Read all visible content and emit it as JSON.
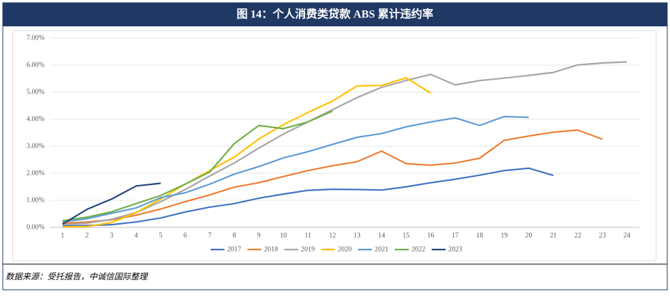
{
  "chart_data": {
    "type": "line",
    "title": "图 14：个人消费类贷款 ABS 累计违约率",
    "categories": [
      "1",
      "2",
      "3",
      "4",
      "5",
      "6",
      "7",
      "8",
      "9",
      "10",
      "11",
      "12",
      "13",
      "14",
      "15",
      "16",
      "17",
      "18",
      "19",
      "20",
      "21",
      "22",
      "23",
      "24"
    ],
    "series": [
      {
        "name": "2017",
        "color": "#4472c4",
        "values": [
          0.05,
          0.07,
          0.1,
          0.2,
          0.35,
          0.57,
          0.75,
          0.88,
          1.08,
          1.23,
          1.37,
          1.41,
          1.4,
          1.38,
          1.5,
          1.65,
          1.78,
          1.93,
          2.1,
          2.19,
          1.92,
          null,
          null,
          null
        ]
      },
      {
        "name": "2018",
        "color": "#ed7d31",
        "values": [
          0.15,
          0.2,
          0.28,
          0.45,
          0.68,
          0.95,
          1.2,
          1.49,
          1.65,
          1.88,
          2.1,
          2.28,
          2.43,
          2.82,
          2.36,
          2.3,
          2.38,
          2.56,
          3.22,
          3.38,
          3.52,
          3.6,
          3.26,
          null
        ]
      },
      {
        "name": "2019",
        "color": "#a5a5a5",
        "values": [
          0.1,
          0.15,
          0.3,
          0.55,
          0.95,
          1.4,
          1.9,
          2.38,
          2.93,
          3.45,
          3.9,
          4.35,
          4.8,
          5.18,
          5.43,
          5.66,
          5.27,
          5.43,
          5.52,
          5.62,
          5.73,
          6.01,
          6.08,
          6.12
        ]
      },
      {
        "name": "2020",
        "color": "#ffc000",
        "values": [
          0.02,
          0.03,
          0.18,
          0.55,
          1.05,
          1.6,
          2.1,
          2.6,
          3.27,
          3.8,
          4.25,
          4.67,
          5.23,
          5.25,
          5.53,
          4.97,
          null,
          null,
          null,
          null,
          null,
          null,
          null,
          null
        ]
      },
      {
        "name": "2021",
        "color": "#5b9bd5",
        "values": [
          0.2,
          0.32,
          0.52,
          0.72,
          1.1,
          1.28,
          1.6,
          1.97,
          2.25,
          2.57,
          2.8,
          3.07,
          3.33,
          3.47,
          3.72,
          3.9,
          4.05,
          3.77,
          4.1,
          4.07,
          null,
          null,
          null,
          null
        ]
      },
      {
        "name": "2022",
        "color": "#70ad47",
        "values": [
          0.25,
          0.38,
          0.58,
          0.88,
          1.18,
          1.6,
          2.05,
          3.1,
          3.77,
          3.65,
          3.9,
          4.3,
          null,
          null,
          null,
          null,
          null,
          null,
          null,
          null,
          null,
          null,
          null,
          null
        ]
      },
      {
        "name": "2023",
        "color": "#264478",
        "values": [
          0.12,
          0.67,
          1.05,
          1.53,
          1.63,
          null,
          null,
          null,
          null,
          null,
          null,
          null,
          null,
          null,
          null,
          null,
          null,
          null,
          null,
          null,
          null,
          null,
          null,
          null
        ]
      }
    ],
    "ylim": [
      0,
      7
    ],
    "yticks": [
      {
        "value": 0,
        "label": "0.00%"
      },
      {
        "value": 1,
        "label": "1.00%"
      },
      {
        "value": 2,
        "label": "2.00%"
      },
      {
        "value": 3,
        "label": "3.00%"
      },
      {
        "value": 4,
        "label": "4.00%"
      },
      {
        "value": 5,
        "label": "5.00%"
      },
      {
        "value": 6,
        "label": "6.00%"
      },
      {
        "value": 7,
        "label": "7.00%"
      }
    ],
    "grid": true,
    "legend": "bottom",
    "source": "数据来源：受托报告，中诚信国际整理"
  }
}
